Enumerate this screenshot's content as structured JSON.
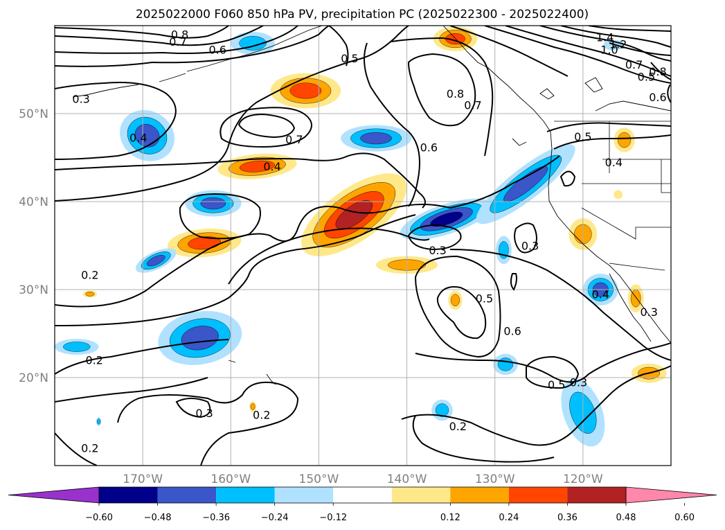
{
  "chart_data": {
    "type": "contour-map",
    "title": "2025022000 F060 850 hPa PV, precipitation PC (2025022300 - 2025022400)",
    "x_ticks": [
      "170°W",
      "160°W",
      "150°W",
      "140°W",
      "130°W",
      "120°W"
    ],
    "x_tick_values": [
      -170,
      -160,
      -150,
      -140,
      -130,
      -120
    ],
    "y_ticks": [
      "50°N",
      "40°N",
      "30°N",
      "20°N"
    ],
    "y_tick_values": [
      50,
      40,
      30,
      20
    ],
    "xlim": [
      -180,
      -110
    ],
    "ylim": [
      10,
      60
    ],
    "grid": true,
    "colorbar": {
      "ticks": [
        "−0.60",
        "−0.48",
        "−0.36",
        "−0.24",
        "−0.12",
        "0.12",
        "0.24",
        "0.36",
        "0.48",
        "0.60"
      ],
      "extend": "both",
      "colors": [
        "#9932cc",
        "#00008b",
        "#3a56c9",
        "#00bfff",
        "#b0e2ff",
        "#ffffff",
        "#ffe88a",
        "#ffa500",
        "#ff4500",
        "#b22222",
        "#ff87ab"
      ]
    },
    "contour_labels": [
      {
        "text": "0.8",
        "lon": -165.8,
        "lat": 59.0
      },
      {
        "text": "0.7",
        "lon": -166.0,
        "lat": 58.2
      },
      {
        "text": "0.6",
        "lon": -161.5,
        "lat": 57.3
      },
      {
        "text": "0.3",
        "lon": -177.0,
        "lat": 51.7
      },
      {
        "text": "0.4",
        "lon": -170.5,
        "lat": 47.3
      },
      {
        "text": "0.5",
        "lon": -146.5,
        "lat": 56.3
      },
      {
        "text": "0.8",
        "lon": -134.5,
        "lat": 52.3
      },
      {
        "text": "0.7",
        "lon": -132.5,
        "lat": 51.0
      },
      {
        "text": "0.7",
        "lon": -152.8,
        "lat": 47.1
      },
      {
        "text": "0.4",
        "lon": -155.3,
        "lat": 44.0
      },
      {
        "text": "0.6",
        "lon": -137.5,
        "lat": 46.2
      },
      {
        "text": "1.4",
        "lon": -117.5,
        "lat": 58.7
      },
      {
        "text": "1.2",
        "lon": -116.0,
        "lat": 57.9
      },
      {
        "text": "1.0",
        "lon": -117.0,
        "lat": 57.3
      },
      {
        "text": "0.7",
        "lon": -114.2,
        "lat": 55.6
      },
      {
        "text": "0.8",
        "lon": -111.5,
        "lat": 54.8
      },
      {
        "text": "0.5",
        "lon": -112.8,
        "lat": 54.2
      },
      {
        "text": "0.6",
        "lon": -111.5,
        "lat": 51.9
      },
      {
        "text": "0.5",
        "lon": -120.0,
        "lat": 47.4
      },
      {
        "text": "0.4",
        "lon": -116.5,
        "lat": 44.5
      },
      {
        "text": "0.3",
        "lon": -136.5,
        "lat": 34.5
      },
      {
        "text": "0.3",
        "lon": -126.0,
        "lat": 35.0
      },
      {
        "text": "0.5",
        "lon": -131.2,
        "lat": 29.0
      },
      {
        "text": "0.6",
        "lon": -128.0,
        "lat": 25.3
      },
      {
        "text": "0.4",
        "lon": -118.0,
        "lat": 29.5
      },
      {
        "text": "0.3",
        "lon": -112.5,
        "lat": 27.5
      },
      {
        "text": "0.2",
        "lon": -176.0,
        "lat": 31.7
      },
      {
        "text": "0.2",
        "lon": -175.5,
        "lat": 22.0
      },
      {
        "text": "0.5",
        "lon": -123.0,
        "lat": 19.2
      },
      {
        "text": "0.3",
        "lon": -120.5,
        "lat": 19.5
      },
      {
        "text": "0.3",
        "lon": -163.0,
        "lat": 16.0
      },
      {
        "text": "0.2",
        "lon": -156.5,
        "lat": 15.8
      },
      {
        "text": "0.2",
        "lon": -134.2,
        "lat": 14.5
      },
      {
        "text": "0.2",
        "lon": -176.0,
        "lat": 12.0
      }
    ],
    "shaded_regions": [
      {
        "lon": -169.5,
        "lat": 47.5,
        "rx": 3.2,
        "ry": 2.8,
        "rot": 30,
        "levels": [
          -0.12,
          -0.24,
          -0.36
        ]
      },
      {
        "lon": -151.5,
        "lat": 52.6,
        "rx": 4.0,
        "ry": 2.0,
        "rot": 0,
        "levels": [
          0.12,
          0.24,
          0.36
        ]
      },
      {
        "lon": -143.5,
        "lat": 47.2,
        "rx": 4.0,
        "ry": 1.5,
        "rot": 0,
        "levels": [
          -0.12,
          -0.24,
          -0.36
        ]
      },
      {
        "lon": -157.0,
        "lat": 44.0,
        "rx": 4.5,
        "ry": 1.4,
        "rot": -5,
        "levels": [
          0.12,
          0.24,
          0.36
        ]
      },
      {
        "lon": -146.0,
        "lat": 38.5,
        "rx": 7.0,
        "ry": 3.0,
        "rot": -35,
        "levels": [
          0.12,
          0.24,
          0.36,
          0.48
        ]
      },
      {
        "lon": -162.0,
        "lat": 39.8,
        "rx": 3.2,
        "ry": 1.5,
        "rot": 0,
        "levels": [
          -0.12,
          -0.24,
          -0.36
        ]
      },
      {
        "lon": -163.0,
        "lat": 35.3,
        "rx": 4.2,
        "ry": 1.6,
        "rot": -5,
        "levels": [
          0.12,
          0.24,
          0.36
        ]
      },
      {
        "lon": -168.5,
        "lat": 33.3,
        "rx": 2.5,
        "ry": 1.0,
        "rot": -25,
        "levels": [
          -0.12,
          -0.24,
          -0.36
        ]
      },
      {
        "lon": -140.0,
        "lat": 32.8,
        "rx": 3.5,
        "ry": 1.0,
        "rot": 0,
        "levels": [
          0.12,
          0.24
        ]
      },
      {
        "lon": -135.5,
        "lat": 38.0,
        "rx": 5.5,
        "ry": 1.7,
        "rot": -18,
        "levels": [
          -0.12,
          -0.24,
          -0.36,
          -0.48
        ]
      },
      {
        "lon": -126.5,
        "lat": 42.0,
        "rx": 7.0,
        "ry": 1.8,
        "rot": -38,
        "levels": [
          -0.12,
          -0.24,
          -0.36
        ]
      },
      {
        "lon": -163.5,
        "lat": 24.5,
        "rx": 4.8,
        "ry": 3.0,
        "rot": -10,
        "levels": [
          -0.12,
          -0.24,
          -0.36
        ]
      },
      {
        "lon": -177.5,
        "lat": 23.5,
        "rx": 2.5,
        "ry": 0.9,
        "rot": 0,
        "levels": [
          -0.12,
          -0.24
        ]
      },
      {
        "lon": -118.0,
        "lat": 30.0,
        "rx": 2.0,
        "ry": 1.8,
        "rot": 0,
        "levels": [
          -0.12,
          -0.24,
          -0.36
        ]
      },
      {
        "lon": -120.0,
        "lat": 16.0,
        "rx": 2.2,
        "ry": 4.0,
        "rot": -20,
        "levels": [
          -0.12,
          -0.24
        ]
      },
      {
        "lon": -128.8,
        "lat": 21.5,
        "rx": 1.4,
        "ry": 1.2,
        "rot": 0,
        "levels": [
          -0.12,
          -0.24
        ]
      },
      {
        "lon": -129.0,
        "lat": 34.5,
        "rx": 0.9,
        "ry": 1.6,
        "rot": 0,
        "levels": [
          -0.12,
          -0.24
        ]
      },
      {
        "lon": -120.0,
        "lat": 36.3,
        "rx": 1.6,
        "ry": 1.8,
        "rot": 0,
        "levels": [
          0.12,
          0.24
        ]
      },
      {
        "lon": -114.0,
        "lat": 29.0,
        "rx": 0.9,
        "ry": 1.6,
        "rot": 0,
        "levels": [
          0.12,
          0.24
        ]
      },
      {
        "lon": -115.3,
        "lat": 47.0,
        "rx": 1.2,
        "ry": 1.4,
        "rot": 0,
        "levels": [
          0.12,
          0.24
        ]
      },
      {
        "lon": -134.5,
        "lat": 58.5,
        "rx": 2.5,
        "ry": 1.4,
        "rot": 0,
        "levels": [
          0.12,
          0.24,
          0.36
        ]
      },
      {
        "lon": -157.5,
        "lat": 58.0,
        "rx": 2.5,
        "ry": 1.3,
        "rot": 0,
        "levels": [
          -0.12,
          -0.24
        ]
      },
      {
        "lon": -112.5,
        "lat": 20.5,
        "rx": 2.0,
        "ry": 1.1,
        "rot": 0,
        "levels": [
          0.12,
          0.24
        ]
      },
      {
        "lon": -134.5,
        "lat": 28.8,
        "rx": 0.8,
        "ry": 1.1,
        "rot": 0,
        "levels": [
          0.12,
          0.24
        ]
      },
      {
        "lon": -136.0,
        "lat": 16.3,
        "rx": 1.2,
        "ry": 1.2,
        "rot": 0,
        "levels": [
          -0.12,
          -0.24
        ]
      },
      {
        "lon": -116.5,
        "lat": 57.8,
        "rx": 1.2,
        "ry": 0.6,
        "rot": 0,
        "levels": [
          -0.12
        ]
      },
      {
        "lon": -157.5,
        "lat": 16.7,
        "rx": 0.4,
        "ry": 0.6,
        "rot": 0,
        "levels": [
          0.12,
          0.24
        ]
      },
      {
        "lon": -176.0,
        "lat": 29.5,
        "rx": 0.8,
        "ry": 0.4,
        "rot": 0,
        "levels": [
          0.12,
          0.24
        ]
      },
      {
        "lon": -175.0,
        "lat": 15.0,
        "rx": 0.3,
        "ry": 0.5,
        "rot": 0,
        "levels": [
          -0.12,
          -0.24
        ]
      },
      {
        "lon": -116.0,
        "lat": 40.8,
        "rx": 0.5,
        "ry": 0.5,
        "rot": 0,
        "levels": [
          0.12
        ]
      }
    ]
  }
}
